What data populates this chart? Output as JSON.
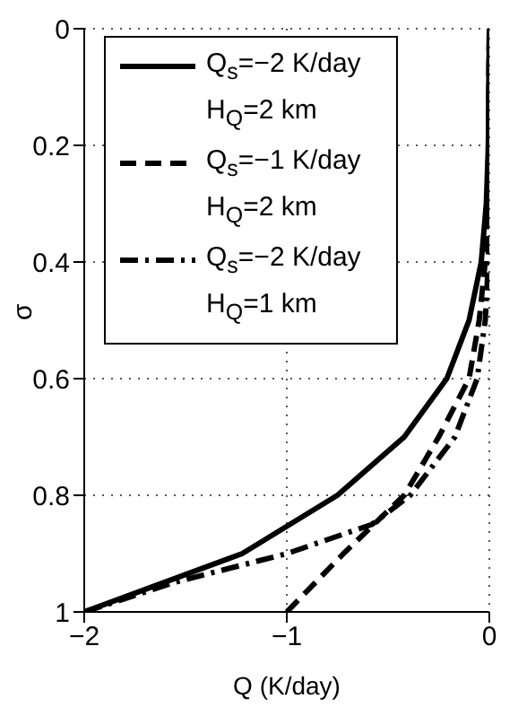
{
  "chart_data": {
    "type": "line",
    "xlabel": "Q (K/day)",
    "ylabel": "σ",
    "xlim": [
      -2,
      0
    ],
    "xticks": [
      -2,
      -1,
      0
    ],
    "ylim": [
      1,
      0
    ],
    "yticks": [
      0,
      0.2,
      0.4,
      0.6,
      0.8,
      1
    ],
    "grid": true,
    "legend": "top left",
    "marker": "none",
    "series": [
      {
        "name": "Q$_{s}$=−2 K/day H$_{Q}$=2 km",
        "color": "#000000",
        "line_style": "solid",
        "x": [
          -2,
          -1.22,
          -0.75,
          -0.42,
          -0.21,
          -0.1,
          -0.04,
          -0.015,
          -0.005,
          0
        ],
        "values": [
          1,
          0.9,
          0.8,
          0.7,
          0.6,
          0.5,
          0.4,
          0.3,
          0.2,
          0
        ]
      },
      {
        "name": "Q$_{s}$=−1 K/day H$_{Q}$=2 km",
        "color": "#000000",
        "line_style": "dashed",
        "x": [
          -1,
          -0.72,
          -0.42,
          -0.25,
          -0.1,
          -0.05,
          -0.02,
          -0.007,
          0
        ],
        "values": [
          1,
          0.9,
          0.8,
          0.7,
          0.6,
          0.5,
          0.4,
          0.3,
          0
        ]
      },
      {
        "name": "Q$_{s}$=−2 K/day H$_{Q}$=1 km",
        "color": "#000000",
        "line_style": "dashdot",
        "x": [
          -2,
          -1.56,
          -1,
          -0.58,
          -0.39,
          -0.17,
          -0.06,
          -0.02,
          -0.005,
          0
        ],
        "values": [
          1,
          0.95,
          0.9,
          0.85,
          0.8,
          0.7,
          0.6,
          0.5,
          0.4,
          0
        ]
      }
    ]
  }
}
